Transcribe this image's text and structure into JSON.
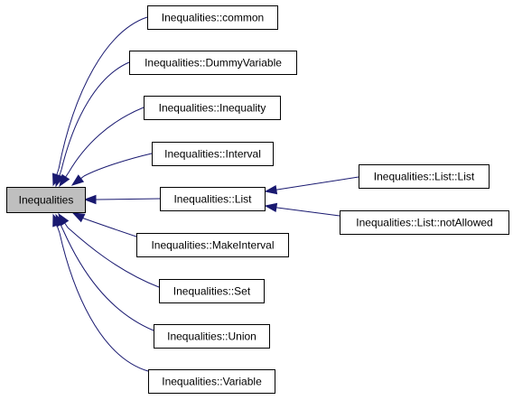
{
  "nodes": [
    {
      "id": "root",
      "label": "Inequalities",
      "root": true
    },
    {
      "id": "common",
      "label": "Inequalities::common"
    },
    {
      "id": "dummy",
      "label": "Inequalities::DummyVariable"
    },
    {
      "id": "inequality",
      "label": "Inequalities::Inequality"
    },
    {
      "id": "interval",
      "label": "Inequalities::Interval"
    },
    {
      "id": "list",
      "label": "Inequalities::List"
    },
    {
      "id": "makeinterval",
      "label": "Inequalities::MakeInterval"
    },
    {
      "id": "set",
      "label": "Inequalities::Set"
    },
    {
      "id": "union",
      "label": "Inequalities::Union"
    },
    {
      "id": "variable",
      "label": "Inequalities::Variable"
    },
    {
      "id": "listlist",
      "label": "Inequalities::List::List"
    },
    {
      "id": "notallowed",
      "label": "Inequalities::List::notAllowed"
    }
  ],
  "edges": [
    {
      "from": "common",
      "to": "root"
    },
    {
      "from": "dummy",
      "to": "root"
    },
    {
      "from": "inequality",
      "to": "root"
    },
    {
      "from": "interval",
      "to": "root"
    },
    {
      "from": "list",
      "to": "root"
    },
    {
      "from": "makeinterval",
      "to": "root"
    },
    {
      "from": "set",
      "to": "root"
    },
    {
      "from": "union",
      "to": "root"
    },
    {
      "from": "variable",
      "to": "root"
    },
    {
      "from": "listlist",
      "to": "list"
    },
    {
      "from": "notallowed",
      "to": "list"
    }
  ],
  "colors": {
    "edge": "#191970",
    "root_fill": "#bfbfbf",
    "node_fill": "#ffffff"
  }
}
